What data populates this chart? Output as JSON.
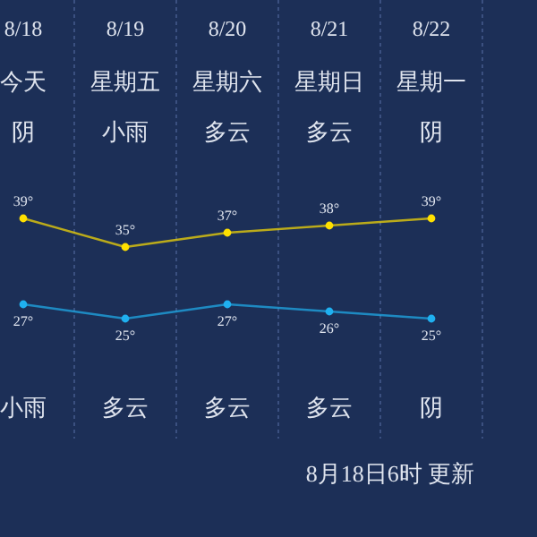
{
  "chart_data": {
    "type": "line",
    "categories": [
      "8/18",
      "8/19",
      "8/20",
      "8/21",
      "8/22"
    ],
    "series": [
      {
        "color": "#ffe000",
        "values": [
          39,
          35,
          37,
          38,
          39
        ],
        "value_labels": [
          "39°",
          "35°",
          "37°",
          "38°",
          "39°"
        ]
      },
      {
        "color": "#1fb0f0",
        "values": [
          27,
          25,
          27,
          26,
          25
        ],
        "value_labels": [
          "27°",
          "25°",
          "27°",
          "26°",
          "25°"
        ]
      }
    ],
    "annotations": [
      "今天",
      "星期五",
      "星期六",
      "星期日",
      "星期一",
      "阴",
      "小雨",
      "多云",
      "多云",
      "阴",
      "小雨",
      "多云",
      "多云",
      "多云",
      "阴",
      "8月18日6时 更新"
    ],
    "grid": "x",
    "marker": "circle"
  }
}
